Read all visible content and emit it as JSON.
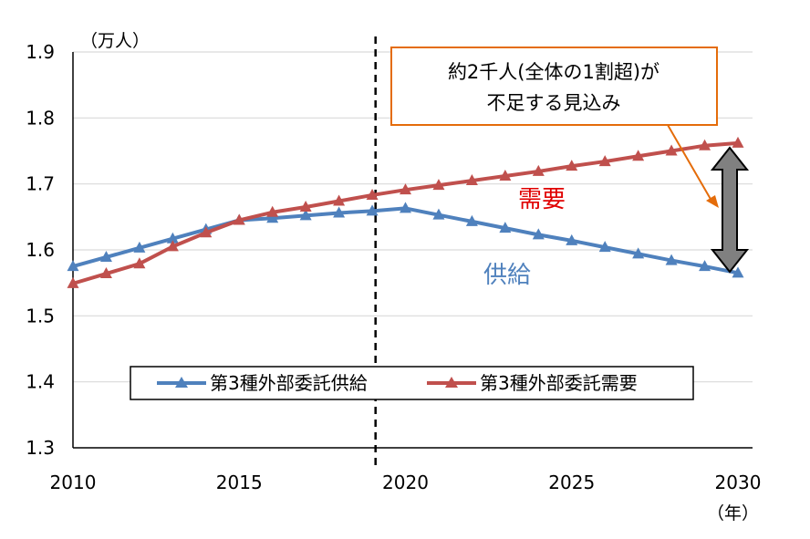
{
  "chart_data": {
    "type": "line",
    "ylabel": "（万人）",
    "xlabel": "（年）",
    "ylim": [
      1.3,
      1.9
    ],
    "xlim": [
      2010,
      2030
    ],
    "y_ticks": [
      "1.9",
      "1.8",
      "1.7",
      "1.6",
      "1.5",
      "1.4",
      "1.3"
    ],
    "x_ticks": [
      "2010",
      "2015",
      "2020",
      "2025",
      "2030"
    ],
    "grid": "horizontal",
    "legend_position": "bottom",
    "x": [
      2010,
      2011,
      2012,
      2013,
      2014,
      2015,
      2016,
      2017,
      2018,
      2019,
      2020,
      2021,
      2022,
      2023,
      2024,
      2025,
      2026,
      2027,
      2028,
      2029,
      2030
    ],
    "series": [
      {
        "name": "第3種外部委託供給",
        "color": "#4F81BD",
        "values": [
          1.575,
          1.589,
          1.603,
          1.617,
          1.631,
          1.645,
          1.648,
          1.652,
          1.656,
          1.659,
          1.663,
          1.653,
          1.643,
          1.633,
          1.623,
          1.614,
          1.604,
          1.594,
          1.584,
          1.575,
          1.565
        ]
      },
      {
        "name": "第3種外部委託需要",
        "color": "#C0504D",
        "values": [
          1.549,
          1.564,
          1.579,
          1.605,
          1.626,
          1.645,
          1.657,
          1.665,
          1.674,
          1.683,
          1.691,
          1.698,
          1.705,
          1.712,
          1.719,
          1.727,
          1.734,
          1.742,
          1.75,
          1.758,
          1.762
        ]
      }
    ],
    "annotations": {
      "divider_year": 2019.1,
      "demand_label": "需要",
      "supply_label": "供給",
      "callout_line1": "約2千人(全体の1割超)が",
      "callout_line2": "不足する見込み"
    }
  }
}
